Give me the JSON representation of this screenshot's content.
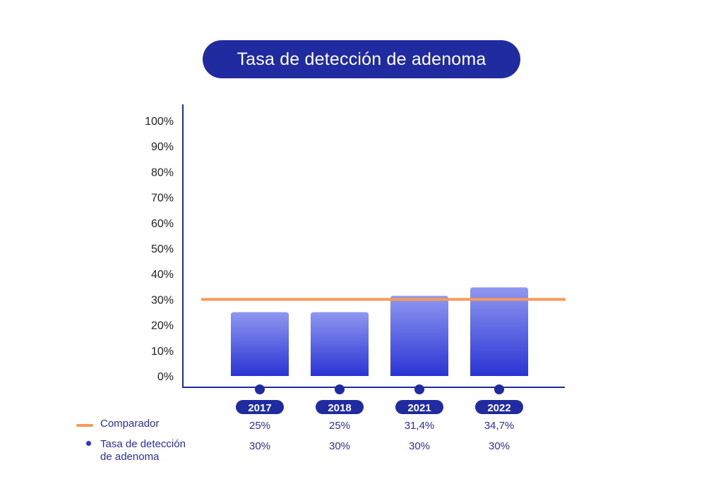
{
  "title": "Tasa de detección de adenoma",
  "legend": {
    "comparador": "Comparador",
    "tasa_line1": "Tasa de detección",
    "tasa_line2": "de adenoma"
  },
  "chart_data": {
    "type": "bar",
    "title": "Tasa de detección de adenoma",
    "categories": [
      "2017",
      "2018",
      "2021",
      "2022"
    ],
    "series": [
      {
        "name": "Tasa de detección de adenoma",
        "values": [
          25,
          25,
          31.4,
          34.7
        ],
        "labels": [
          "25%",
          "25%",
          "31,4%",
          "34,7%"
        ],
        "color": "#2a34d4"
      },
      {
        "name": "Comparador",
        "values": [
          30,
          30,
          30,
          30
        ],
        "labels": [
          "30%",
          "30%",
          "30%",
          "30%"
        ],
        "color": "#f59a57"
      }
    ],
    "yticks": [
      "0%",
      "10%",
      "20%",
      "30%",
      "40%",
      "50%",
      "60%",
      "70%",
      "80%",
      "90%",
      "100%"
    ],
    "ylim": [
      0,
      100
    ],
    "xlabel": "",
    "ylabel": "",
    "grid": false,
    "legend_position": "bottom-left",
    "colors": {
      "axis": "#1f2b9e",
      "bar_top": "#8f98f0",
      "bar_bottom": "#2a34d4",
      "comparator": "#f59a57",
      "pill": "#1f2b9e",
      "label_text": "#2a2f9c",
      "tick_text": "#222222"
    }
  }
}
